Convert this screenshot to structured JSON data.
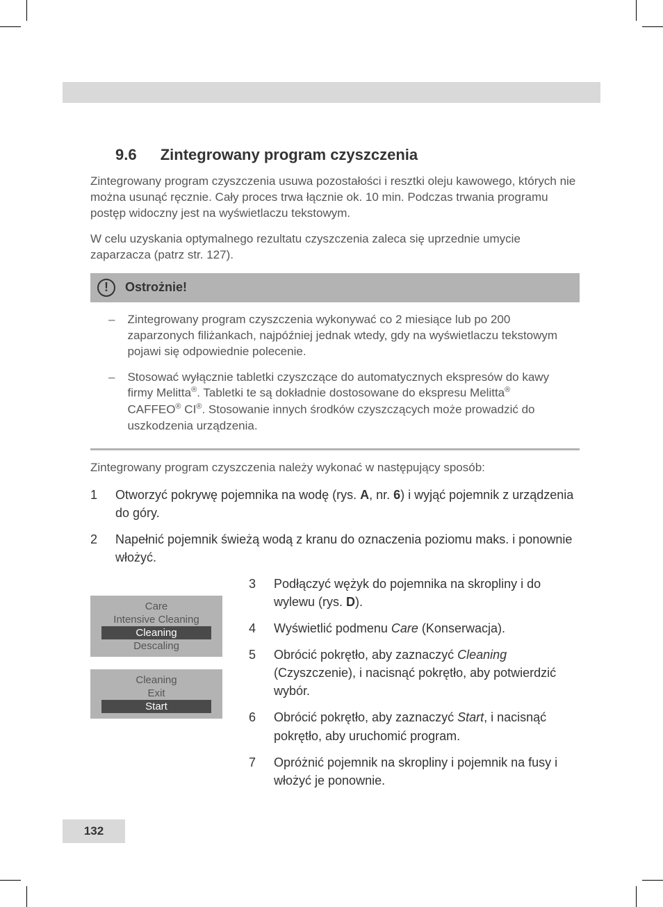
{
  "section": {
    "number": "9.6",
    "title": "Zintegrowany program czyszczenia"
  },
  "intro": [
    "Zintegrowany program czyszczenia usuwa pozostałości i resztki oleju kawowego, których nie można usunąć ręcznie. Cały proces trwa łącznie ok. 10 min. Podczas trwania programu postęp widoczny jest na wyświetlaczu tekstowym.",
    "W celu uzyskania optymalnego rezultatu czyszczenia zaleca się uprzednie umycie zaparzacza (patrz str. 127)."
  ],
  "warning": {
    "title": "Ostrożnie!",
    "items": [
      "Zintegrowany program czyszczenia wykonywać co 2 miesiące lub po 200 zaparzonych filiżankach, najpóźniej jednak wtedy, gdy na wyświetlaczu tekstowym pojawi się odpowiednie polecenie.",
      "Stosować wyłącznie tabletki czyszczące do automatycznych ekspresów do kawy firmy Melitta®. Tabletki te są dokładnie dostosowane do ekspresu Melitta® CAFFEO® CI®. Stosowanie innych środków czyszczących może prowadzić do uszkodzenia urządzenia."
    ]
  },
  "lead": "Zintegrowany program czyszczenia należy wykonać w następujący sposób:",
  "steps_top": [
    "Otworzyć pokrywę pojemnika na wodę (rys. <b>A</b>, nr. <b>6</b>) i wyjąć pojemnik z urządzenia do góry.",
    "Napełnić pojemnik świeżą wodą z kranu do oznaczenia poziomu maks. i ponownie włożyć."
  ],
  "steps_side": [
    {
      "n": "3",
      "html": "Podłączyć wężyk do pojemnika na skropliny i do wylewu (rys. <b>D</b>)."
    },
    {
      "n": "4",
      "html": "Wyświetlić podmenu <i>Care</i> (Konserwacja)."
    },
    {
      "n": "5",
      "html": "Obrócić pokrętło, aby zaznaczyć <i>Cleaning</i> (Czyszczenie), i nacisnąć pokrętło, aby potwierdzić wybór."
    },
    {
      "n": "6",
      "html": "Obrócić pokrętło, aby zaznaczyć <i>Start</i>, i nacisnąć pokrętło, aby uruchomić program."
    },
    {
      "n": "7",
      "html": "Opróżnić pojemnik na skropliny i pojemnik na fusy i włożyć je ponownie."
    }
  ],
  "lcd1": {
    "lines": [
      {
        "text": "Care",
        "sel": false
      },
      {
        "text": "Intensive Cleaning",
        "sel": false
      },
      {
        "text": "Cleaning",
        "sel": true
      },
      {
        "text": "Descaling",
        "sel": false
      }
    ]
  },
  "lcd2": {
    "lines": [
      {
        "text": "Cleaning",
        "sel": false
      },
      {
        "text": "Exit",
        "sel": false
      },
      {
        "text": "Start",
        "sel": true
      },
      {
        "text": "",
        "sel": false
      }
    ]
  },
  "page_number": "132"
}
